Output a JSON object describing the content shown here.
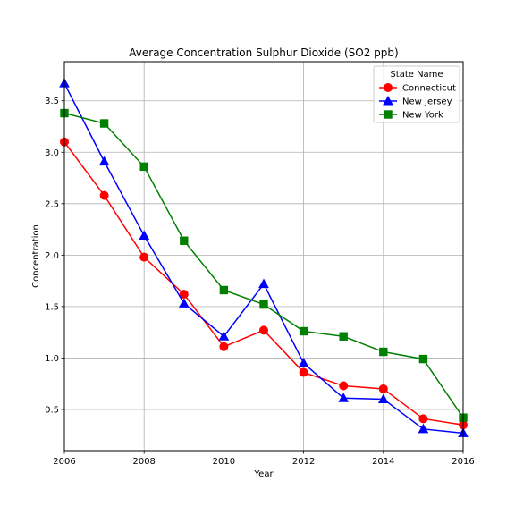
{
  "chart_data": {
    "type": "line",
    "title": "Average Concentration Sulphur Dioxide (SO2 ppb)",
    "xlabel": "Year",
    "ylabel": "Concentration",
    "x": [
      2006,
      2007,
      2008,
      2009,
      2010,
      2011,
      2012,
      2013,
      2014,
      2015,
      2016
    ],
    "xlim": [
      2006,
      2016
    ],
    "ylim": [
      0.1,
      3.88
    ],
    "xticks": [
      2006,
      2008,
      2010,
      2012,
      2014,
      2016
    ],
    "yticks": [
      0.5,
      1.0,
      1.5,
      2.0,
      2.5,
      3.0,
      3.5
    ],
    "ytick_labels": [
      "0.5",
      "1.0",
      "1.5",
      "2.0",
      "2.5",
      "3.0",
      "3.5"
    ],
    "grid": true,
    "legend": {
      "title": "State Name",
      "placement": "top-right"
    },
    "series": [
      {
        "name": "Connecticut",
        "color": "#ff0000",
        "marker": "circle",
        "values": [
          3.1,
          2.58,
          1.98,
          1.62,
          1.11,
          1.27,
          0.86,
          0.73,
          0.7,
          0.41,
          0.35
        ]
      },
      {
        "name": "New Jersey",
        "color": "#0000ff",
        "marker": "triangle",
        "values": [
          3.67,
          2.91,
          2.19,
          1.53,
          1.21,
          1.72,
          0.95,
          0.61,
          0.6,
          0.31,
          0.27
        ]
      },
      {
        "name": "New York",
        "color": "#008000",
        "marker": "square",
        "values": [
          3.38,
          3.28,
          2.86,
          2.14,
          1.66,
          1.52,
          1.26,
          1.21,
          1.06,
          0.99,
          0.42
        ]
      }
    ]
  }
}
